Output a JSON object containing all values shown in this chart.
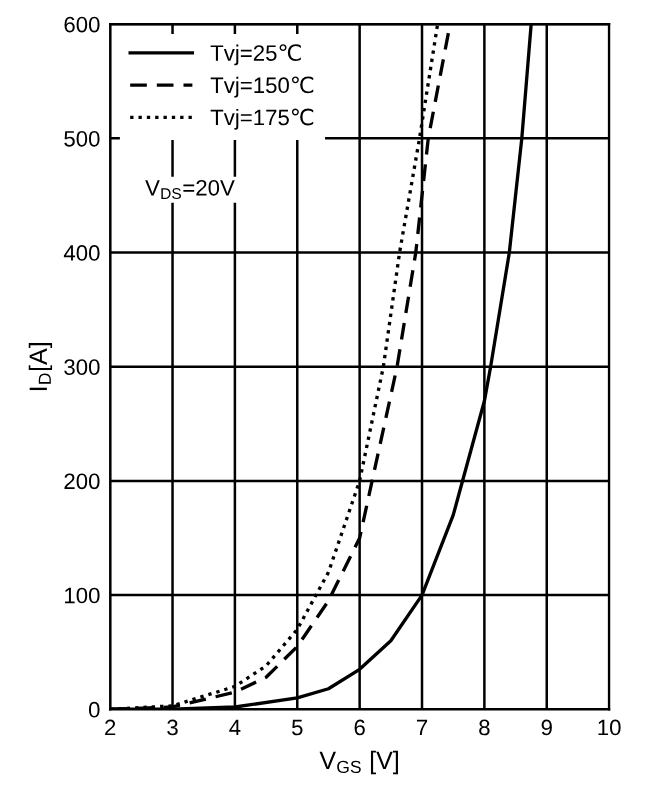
{
  "chart_data": {
    "type": "line",
    "xlabel": "V$_{GS}$ [V]",
    "ylabel": "I$_{D}$[A]",
    "xlim": [
      2,
      10
    ],
    "ylim": [
      0,
      600
    ],
    "xticks": [
      2,
      3,
      4,
      5,
      6,
      7,
      8,
      9,
      10
    ],
    "yticks": [
      0,
      100,
      200,
      300,
      400,
      500,
      600
    ],
    "grid": true,
    "legend": "top left",
    "annotations": [
      "V$_{DS}$=20V"
    ],
    "series": [
      {
        "name": "Tvj=25℃",
        "color": "#000000",
        "line_style": "solid",
        "x": [
          2,
          3,
          4,
          5,
          5.5,
          6,
          6.5,
          7,
          7.5,
          8,
          8.1,
          8.4,
          8.6,
          8.75
        ],
        "values": [
          0,
          0,
          2,
          10,
          18,
          35,
          60,
          100,
          170,
          270,
          300,
          400,
          500,
          600
        ]
      },
      {
        "name": "Tvj=150℃",
        "color": "#000000",
        "line_style": "dashed",
        "x": [
          2,
          3,
          4,
          4.5,
          5,
          5.5,
          6,
          6.2,
          6.6,
          6.9,
          7.1,
          7.45
        ],
        "values": [
          0,
          2,
          15,
          28,
          55,
          95,
          150,
          200,
          300,
          400,
          500,
          600
        ]
      },
      {
        "name": "Tvj=175℃",
        "color": "#000000",
        "line_style": "dotted",
        "x": [
          2,
          3,
          4,
          4.5,
          5,
          5.5,
          6,
          6.38,
          6.64,
          6.96,
          7.25
        ],
        "values": [
          0,
          3,
          20,
          38,
          70,
          120,
          200,
          300,
          400,
          500,
          600
        ]
      }
    ]
  }
}
